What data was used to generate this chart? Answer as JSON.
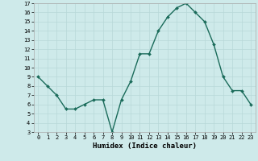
{
  "x": [
    0,
    1,
    2,
    3,
    4,
    5,
    6,
    7,
    8,
    9,
    10,
    11,
    12,
    13,
    14,
    15,
    16,
    17,
    18,
    19,
    20,
    21,
    22,
    23
  ],
  "y": [
    9,
    8,
    7,
    5.5,
    5.5,
    6,
    6.5,
    6.5,
    3,
    6.5,
    8.5,
    11.5,
    11.5,
    14,
    15.5,
    16.5,
    17,
    16,
    15,
    12.5,
    9,
    7.5,
    7.5,
    6
  ],
  "line_color": "#1a6b5a",
  "marker": "D",
  "marker_size": 2.0,
  "bg_color": "#ceeaea",
  "grid_color": "#b8d8d8",
  "xlabel": "Humidex (Indice chaleur)",
  "ylim": [
    3,
    17
  ],
  "xlim": [
    -0.5,
    23.5
  ],
  "yticks": [
    3,
    4,
    5,
    6,
    7,
    8,
    9,
    10,
    11,
    12,
    13,
    14,
    15,
    16,
    17
  ],
  "xticks": [
    0,
    1,
    2,
    3,
    4,
    5,
    6,
    7,
    8,
    9,
    10,
    11,
    12,
    13,
    14,
    15,
    16,
    17,
    18,
    19,
    20,
    21,
    22,
    23
  ],
  "tick_fontsize": 5.0,
  "xlabel_fontsize": 6.5,
  "linewidth": 1.0
}
